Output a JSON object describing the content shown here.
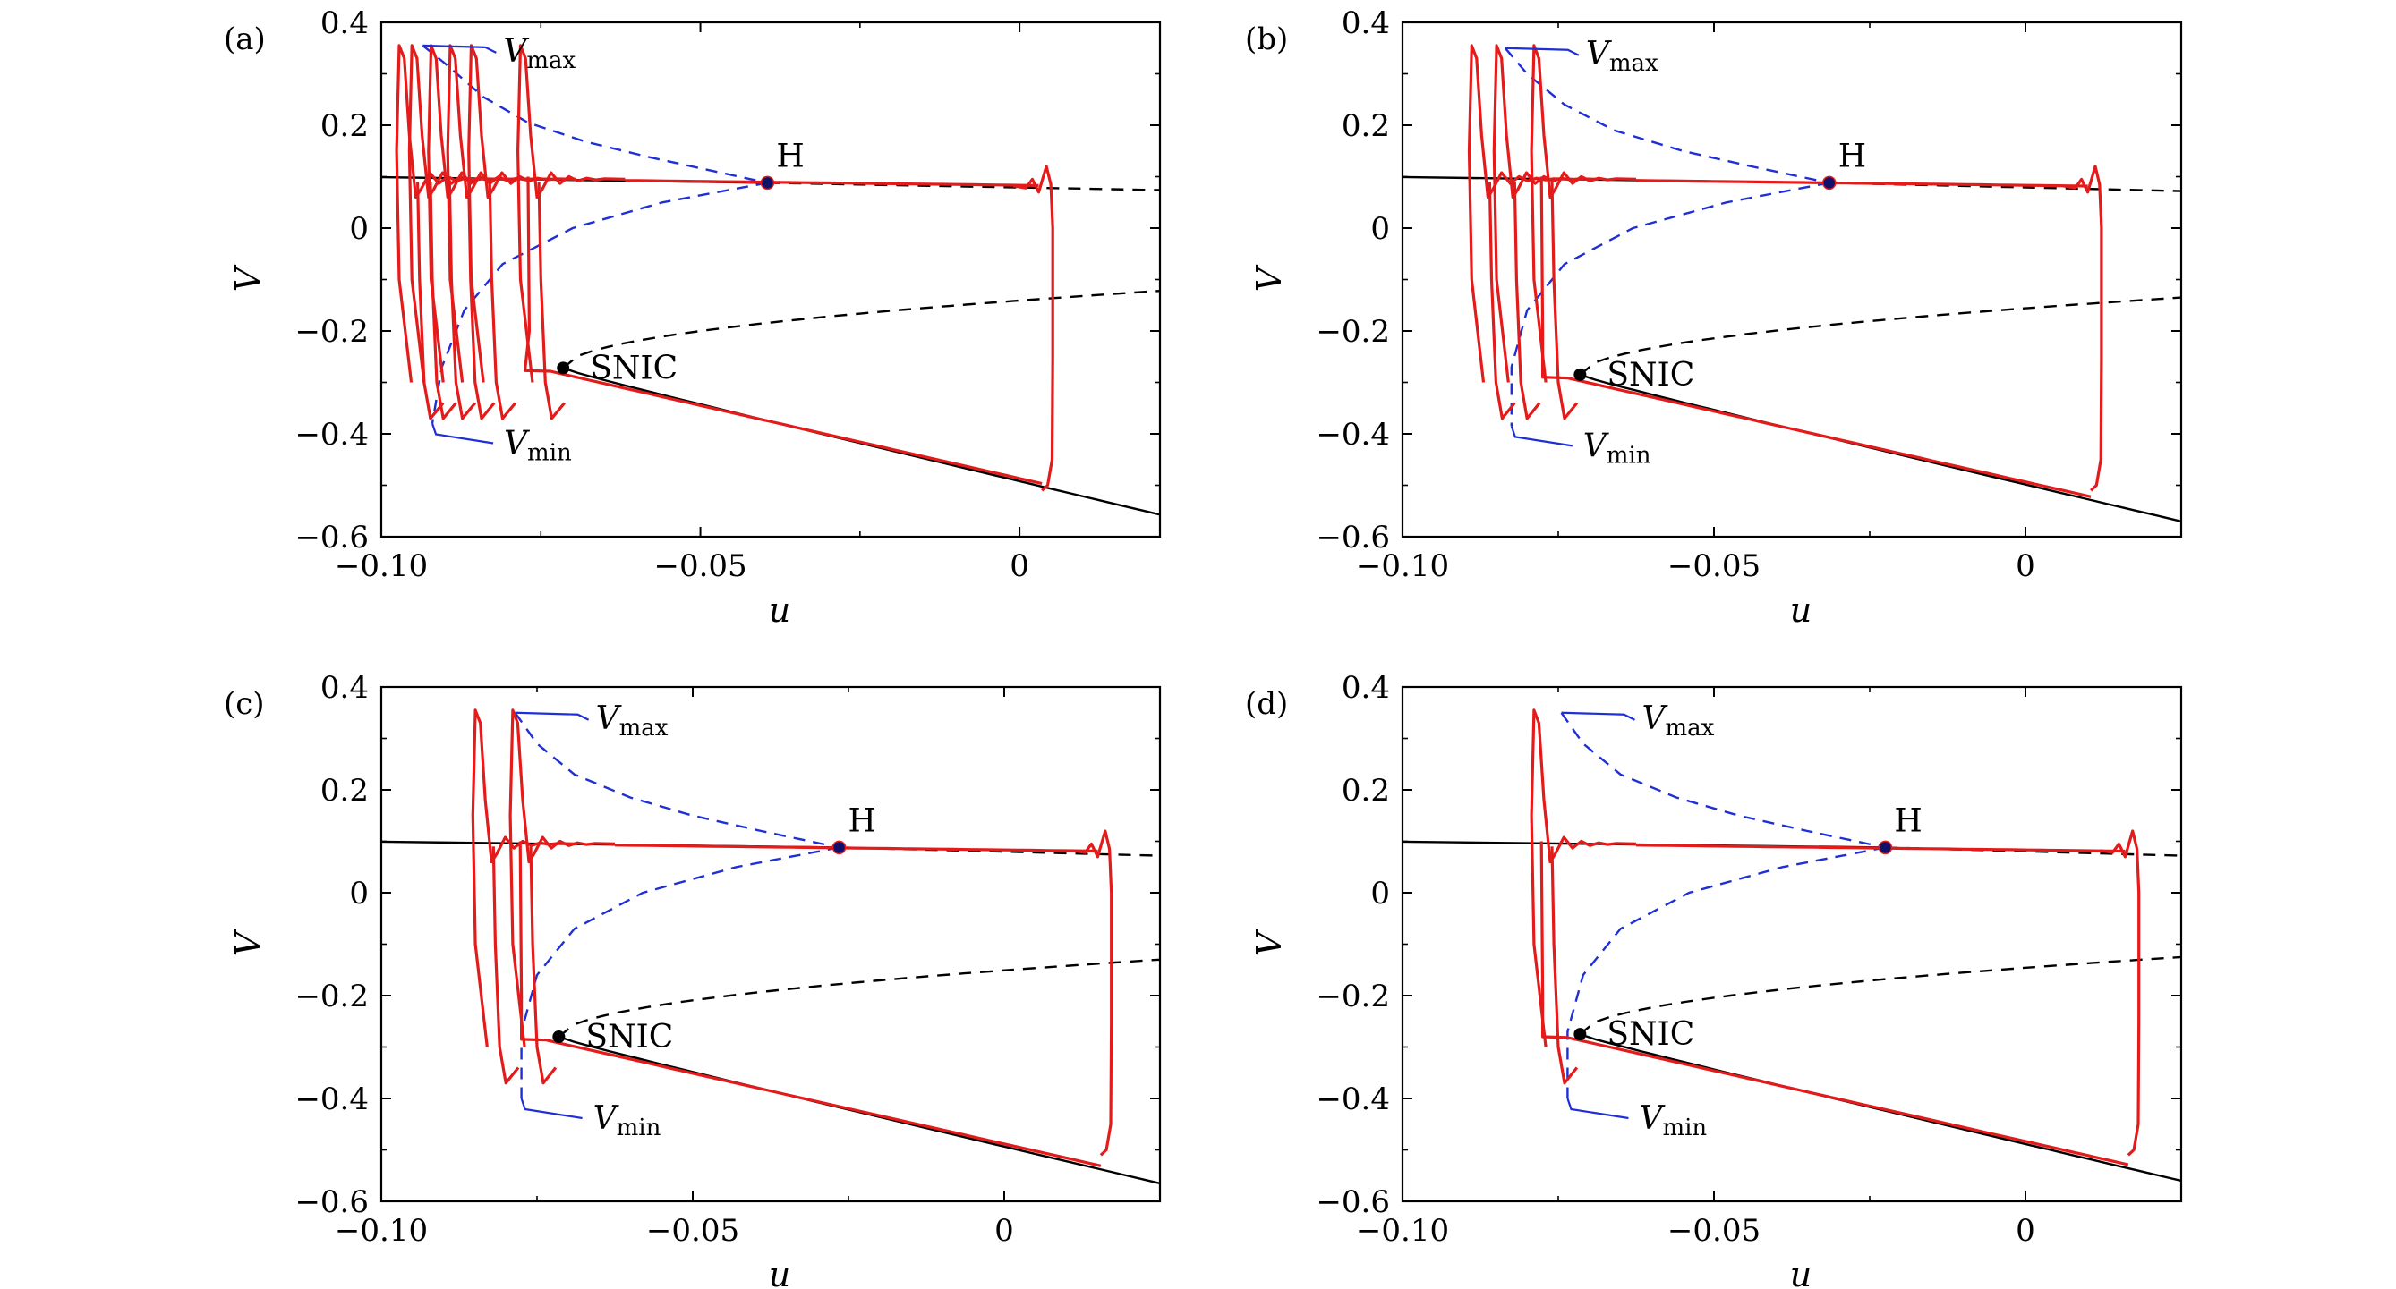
{
  "chart_data": [
    {
      "type": "line",
      "panel_label": "(a)",
      "xlabel": "u",
      "ylabel": "V",
      "xlim": [
        -0.1,
        0.022
      ],
      "ylim": [
        -0.6,
        0.4
      ],
      "xticks": [
        {
          "value": -0.1,
          "label": "−0.10"
        },
        {
          "value": -0.05,
          "label": "−0.05"
        },
        {
          "value": 0,
          "label": "0"
        }
      ],
      "yticks": [
        {
          "value": 0.4,
          "label": "0.4"
        },
        {
          "value": 0.2,
          "label": "0.2"
        },
        {
          "value": 0,
          "label": "0"
        },
        {
          "value": -0.2,
          "label": "−0.2"
        },
        {
          "value": -0.4,
          "label": "−0.4"
        },
        {
          "value": -0.6,
          "label": "−0.6"
        }
      ],
      "H": {
        "u": -0.0395,
        "V": 0.088,
        "label": "H"
      },
      "SNIC": {
        "u": -0.0715,
        "V": -0.272,
        "label": "SNIC"
      },
      "upper_branch_x_end": 0.022,
      "upper_branch_V_end": 0.074,
      "Vmax_annotation": {
        "base": "V",
        "sub": "max",
        "point": {
          "u": -0.0935,
          "V": 0.355
        }
      },
      "Vmin_annotation": {
        "base": "V",
        "sub": "min",
        "point": {
          "u": -0.092,
          "V": -0.38
        }
      },
      "Vmax_curve": [
        [
          -0.0935,
          0.355
        ],
        [
          -0.09,
          0.32
        ],
        [
          -0.084,
          0.255
        ],
        [
          -0.077,
          0.205
        ],
        [
          -0.068,
          0.168
        ],
        [
          -0.058,
          0.138
        ],
        [
          -0.0395,
          0.088
        ]
      ],
      "Vmin_curve": [
        [
          -0.0395,
          0.088
        ],
        [
          -0.056,
          0.05
        ],
        [
          -0.07,
          0.0
        ],
        [
          -0.081,
          -0.07
        ],
        [
          -0.087,
          -0.16
        ],
        [
          -0.0905,
          -0.27
        ],
        [
          -0.092,
          -0.38
        ]
      ],
      "spikes_u": [
        -0.0968,
        -0.0948,
        -0.0918,
        -0.0888,
        -0.0855,
        -0.0778
      ],
      "cycle_right_u": 0.005
    },
    {
      "type": "line",
      "panel_label": "(b)",
      "xlabel": "u",
      "ylabel": "V",
      "xlim": [
        -0.1,
        0.025
      ],
      "ylim": [
        -0.6,
        0.4
      ],
      "xticks": [
        {
          "value": -0.1,
          "label": "−0.10"
        },
        {
          "value": -0.05,
          "label": "−0.05"
        },
        {
          "value": 0,
          "label": "0"
        }
      ],
      "yticks": [
        {
          "value": 0.4,
          "label": "0.4"
        },
        {
          "value": 0.2,
          "label": "0.2"
        },
        {
          "value": 0,
          "label": "0"
        },
        {
          "value": -0.2,
          "label": "−0.2"
        },
        {
          "value": -0.4,
          "label": "−0.4"
        },
        {
          "value": -0.6,
          "label": "−0.6"
        }
      ],
      "H": {
        "u": -0.0315,
        "V": 0.088,
        "label": "H"
      },
      "SNIC": {
        "u": -0.0715,
        "V": -0.285,
        "label": "SNIC"
      },
      "upper_branch_x_end": 0.025,
      "upper_branch_V_end": 0.072,
      "Vmax_annotation": {
        "base": "V",
        "sub": "max",
        "point": {
          "u": -0.0835,
          "V": 0.35
        }
      },
      "Vmin_annotation": {
        "base": "V",
        "sub": "min",
        "point": {
          "u": -0.0825,
          "V": -0.385
        }
      },
      "Vmax_curve": [
        [
          -0.0835,
          0.35
        ],
        [
          -0.08,
          0.3
        ],
        [
          -0.074,
          0.24
        ],
        [
          -0.066,
          0.19
        ],
        [
          -0.055,
          0.15
        ],
        [
          -0.044,
          0.12
        ],
        [
          -0.0315,
          0.088
        ]
      ],
      "Vmin_curve": [
        [
          -0.0315,
          0.088
        ],
        [
          -0.048,
          0.05
        ],
        [
          -0.063,
          0.0
        ],
        [
          -0.074,
          -0.07
        ],
        [
          -0.08,
          -0.16
        ],
        [
          -0.0825,
          -0.27
        ],
        [
          -0.0825,
          -0.385
        ]
      ],
      "spikes_u": [
        -0.0885,
        -0.0845,
        -0.0785
      ],
      "cycle_right_u": 0.012
    },
    {
      "type": "line",
      "panel_label": "(c)",
      "xlabel": "u",
      "ylabel": "V",
      "xlim": [
        -0.1,
        0.025
      ],
      "ylim": [
        -0.6,
        0.4
      ],
      "xticks": [
        {
          "value": -0.1,
          "label": "−0.10"
        },
        {
          "value": -0.05,
          "label": "−0.05"
        },
        {
          "value": 0,
          "label": "0"
        }
      ],
      "yticks": [
        {
          "value": 0.4,
          "label": "0.4"
        },
        {
          "value": 0.2,
          "label": "0.2"
        },
        {
          "value": 0,
          "label": "0"
        },
        {
          "value": -0.2,
          "label": "−0.2"
        },
        {
          "value": -0.4,
          "label": "−0.4"
        },
        {
          "value": -0.6,
          "label": "−0.6"
        }
      ],
      "H": {
        "u": -0.0265,
        "V": 0.088,
        "label": "H"
      },
      "SNIC": {
        "u": -0.0715,
        "V": -0.28,
        "label": "SNIC"
      },
      "upper_branch_x_end": 0.025,
      "upper_branch_V_end": 0.072,
      "Vmax_annotation": {
        "base": "V",
        "sub": "max",
        "point": {
          "u": -0.0785,
          "V": 0.35
        }
      },
      "Vmin_annotation": {
        "base": "V",
        "sub": "min",
        "point": {
          "u": -0.0775,
          "V": -0.4
        }
      },
      "Vmax_curve": [
        [
          -0.0785,
          0.35
        ],
        [
          -0.075,
          0.29
        ],
        [
          -0.069,
          0.23
        ],
        [
          -0.06,
          0.185
        ],
        [
          -0.05,
          0.15
        ],
        [
          -0.039,
          0.12
        ],
        [
          -0.0265,
          0.088
        ]
      ],
      "Vmin_curve": [
        [
          -0.0265,
          0.088
        ],
        [
          -0.043,
          0.05
        ],
        [
          -0.058,
          0.0
        ],
        [
          -0.069,
          -0.07
        ],
        [
          -0.075,
          -0.16
        ],
        [
          -0.0775,
          -0.27
        ],
        [
          -0.0775,
          -0.4
        ]
      ],
      "spikes_u": [
        -0.0845,
        -0.0785
      ],
      "cycle_right_u": 0.017
    },
    {
      "type": "line",
      "panel_label": "(d)",
      "xlabel": "u",
      "ylabel": "V",
      "xlim": [
        -0.1,
        0.025
      ],
      "ylim": [
        -0.6,
        0.4
      ],
      "xticks": [
        {
          "value": -0.1,
          "label": "−0.10"
        },
        {
          "value": -0.05,
          "label": "−0.05"
        },
        {
          "value": 0,
          "label": "0"
        }
      ],
      "yticks": [
        {
          "value": 0.4,
          "label": "0.4"
        },
        {
          "value": 0.2,
          "label": "0.2"
        },
        {
          "value": 0,
          "label": "0"
        },
        {
          "value": -0.2,
          "label": "−0.2"
        },
        {
          "value": -0.4,
          "label": "−0.4"
        },
        {
          "value": -0.6,
          "label": "−0.6"
        }
      ],
      "H": {
        "u": -0.0225,
        "V": 0.088,
        "label": "H"
      },
      "SNIC": {
        "u": -0.0715,
        "V": -0.275,
        "label": "SNIC"
      },
      "upper_branch_x_end": 0.025,
      "upper_branch_V_end": 0.072,
      "Vmax_annotation": {
        "base": "V",
        "sub": "max",
        "point": {
          "u": -0.0745,
          "V": 0.35
        }
      },
      "Vmin_annotation": {
        "base": "V",
        "sub": "min",
        "point": {
          "u": -0.0735,
          "V": -0.4
        }
      },
      "Vmax_curve": [
        [
          -0.0745,
          0.35
        ],
        [
          -0.071,
          0.29
        ],
        [
          -0.065,
          0.23
        ],
        [
          -0.056,
          0.185
        ],
        [
          -0.046,
          0.15
        ],
        [
          -0.035,
          0.12
        ],
        [
          -0.0225,
          0.088
        ]
      ],
      "Vmin_curve": [
        [
          -0.0225,
          0.088
        ],
        [
          -0.039,
          0.05
        ],
        [
          -0.054,
          0.0
        ],
        [
          -0.065,
          -0.07
        ],
        [
          -0.071,
          -0.16
        ],
        [
          -0.0735,
          -0.27
        ],
        [
          -0.0735,
          -0.4
        ]
      ],
      "spikes_u": [
        -0.0785
      ],
      "cycle_right_u": 0.018
    }
  ]
}
